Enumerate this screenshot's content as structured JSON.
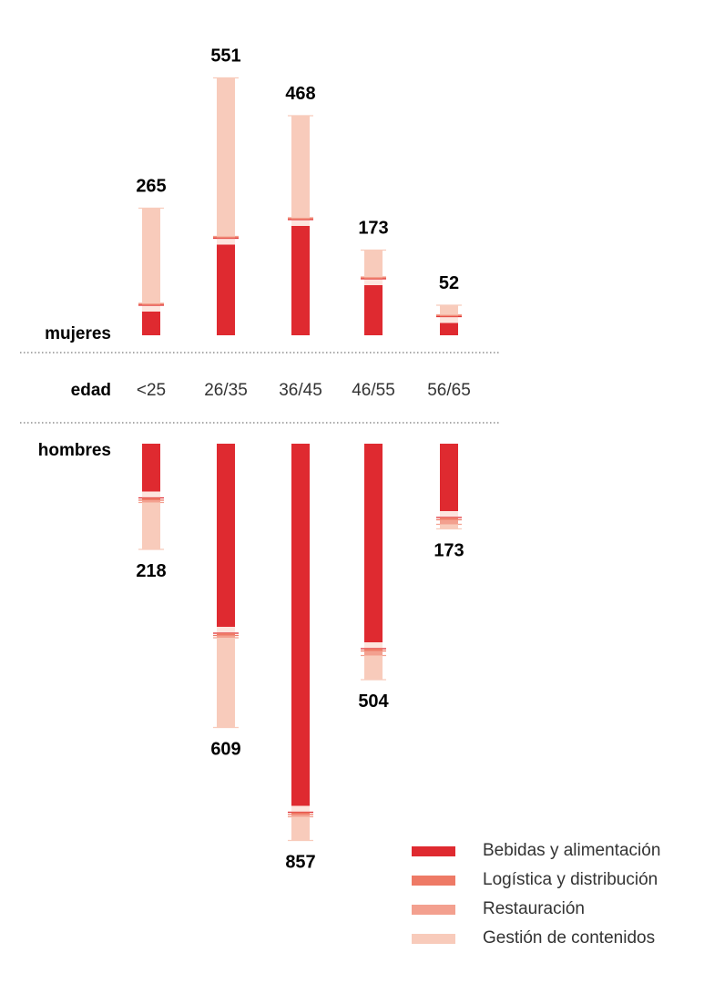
{
  "labels": {
    "women": "mujeres",
    "age": "edad",
    "men": "hombres"
  },
  "colors": {
    "Bebidas y alimentación": "#df2a30",
    "Logística y distribución": "#ee7a66",
    "Restauración": "#f3a08f",
    "Gestión de contenidos": "#f8cbbb",
    "gap": "#fde5de"
  },
  "chart_data": {
    "type": "bar",
    "categories": [
      "<25",
      "26/35",
      "36/45",
      "46/55",
      "56/65"
    ],
    "series_names": [
      "Bebidas y alimentación",
      "Logística y distribución",
      "Restauración",
      "Gestión de contenidos"
    ],
    "scale_max": 900,
    "groups": [
      {
        "name": "mujeres",
        "totals": [
          265,
          551,
          468,
          173,
          52
        ],
        "series": [
          {
            "name": "Bebidas y alimentación",
            "values": [
              52,
              199,
              240,
              110,
              27
            ]
          },
          {
            "name": "Logística y distribución",
            "values": [
              2,
              2,
              2,
              2,
              2
            ]
          },
          {
            "name": "Restauración",
            "values": [
              2,
              2,
              2,
              2,
              2
            ]
          },
          {
            "name": "Gestión de contenidos",
            "values": [
              209,
              348,
              224,
              59,
              21
            ]
          }
        ]
      },
      {
        "name": "hombres",
        "totals": [
          218,
          609,
          857,
          504,
          173
        ],
        "series": [
          {
            "name": "Bebidas y alimentación",
            "values": [
              105,
              402,
              795,
              436,
              148
            ]
          },
          {
            "name": "Logística y distribución",
            "values": [
              5,
              5,
              5,
              5,
              5
            ]
          },
          {
            "name": "Restauración",
            "values": [
              5,
              5,
              5,
              10,
              10
            ]
          },
          {
            "name": "Gestión de contenidos",
            "values": [
              103,
              197,
              52,
              53,
              10
            ]
          }
        ]
      }
    ]
  }
}
